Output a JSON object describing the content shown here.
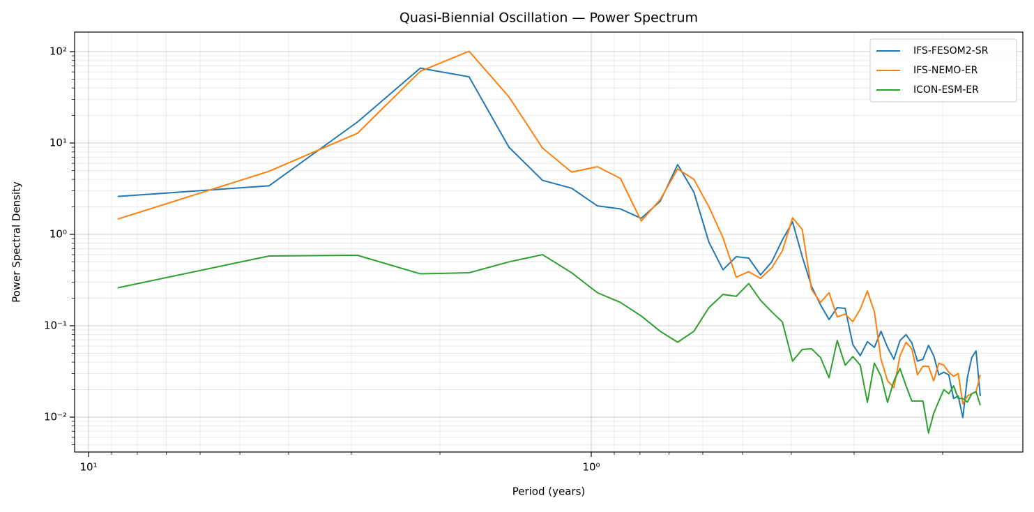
{
  "chart_data": {
    "type": "line",
    "title": "Quasi-Biennial Oscillation — Power Spectrum",
    "x_label": "Period (years)",
    "y_label": "Power Spectral Density",
    "xscale": "log",
    "yscale": "log",
    "grid": true,
    "legend": "upper right",
    "xlim": [
      10.66,
      0.1385
    ],
    "ylim": [
      0.00415,
      163.7
    ],
    "xticks": [
      {
        "value": 10,
        "label": "10¹"
      },
      {
        "value": 1,
        "label": "10⁰"
      }
    ],
    "xticks_minor": [
      9,
      8,
      7,
      6,
      5,
      4,
      3,
      2,
      0.9,
      0.8,
      0.7,
      0.6,
      0.5,
      0.4,
      0.3,
      0.2
    ],
    "yticks": [
      {
        "value": 0.01,
        "label": "10⁻²"
      },
      {
        "value": 0.1,
        "label": "10⁻¹"
      },
      {
        "value": 1,
        "label": "10⁰"
      },
      {
        "value": 10,
        "label": "10¹"
      },
      {
        "value": 100,
        "label": "10²"
      }
    ],
    "yticks_minor": [
      0.005,
      0.006,
      0.007,
      0.008,
      0.009,
      0.02,
      0.03,
      0.04,
      0.05,
      0.06,
      0.07,
      0.08,
      0.09,
      0.2,
      0.3,
      0.4,
      0.5,
      0.6,
      0.7,
      0.8,
      0.9,
      2,
      3,
      4,
      5,
      6,
      7,
      8,
      9,
      20,
      30,
      40,
      50,
      60,
      70,
      80,
      90
    ],
    "x": [
      8.75,
      4.375,
      2.917,
      2.188,
      1.75,
      1.458,
      1.25,
      1.094,
      0.9722,
      0.875,
      0.7955,
      0.7292,
      0.6731,
      0.625,
      0.5833,
      0.5469,
      0.5147,
      0.4861,
      0.4605,
      0.4375,
      0.4167,
      0.3977,
      0.3804,
      0.3646,
      0.35,
      0.3365,
      0.3241,
      0.3125,
      0.3017,
      0.2917,
      0.2823,
      0.2734,
      0.2652,
      0.2574,
      0.25,
      0.2431,
      0.2365,
      0.2303,
      0.2244,
      0.2188,
      0.2134,
      0.2083,
      0.2035,
      0.1989,
      0.1944,
      0.1902,
      0.1862,
      0.1823,
      0.1786,
      0.175,
      0.1716,
      0.1683
    ],
    "series": [
      {
        "name": "IFS-FESOM2-SR",
        "color": "#1f77b4",
        "values": [
          2.6,
          3.4,
          17,
          66,
          53,
          9,
          3.9,
          3.2,
          2.05,
          1.9,
          1.5,
          2.3,
          5.8,
          2.9,
          0.82,
          0.41,
          0.57,
          0.55,
          0.36,
          0.5,
          0.87,
          1.37,
          0.57,
          0.27,
          0.17,
          0.117,
          0.158,
          0.155,
          0.062,
          0.047,
          0.067,
          0.058,
          0.087,
          0.058,
          0.043,
          0.069,
          0.08,
          0.065,
          0.041,
          0.043,
          0.061,
          0.047,
          0.029,
          0.031,
          0.029,
          0.016,
          0.017,
          0.0099,
          0.027,
          0.045,
          0.053,
          0.017
        ]
      },
      {
        "name": "IFS-NEMO-ER",
        "color": "#ff7f0e",
        "values": [
          1.47,
          4.9,
          12.8,
          61,
          101,
          32,
          8.8,
          4.8,
          5.5,
          4.1,
          1.4,
          2.4,
          5.2,
          4.0,
          2.0,
          0.92,
          0.34,
          0.39,
          0.33,
          0.43,
          0.66,
          1.52,
          1.13,
          0.25,
          0.18,
          0.23,
          0.125,
          0.134,
          0.111,
          0.152,
          0.24,
          0.142,
          0.043,
          0.025,
          0.021,
          0.047,
          0.066,
          0.056,
          0.029,
          0.036,
          0.036,
          0.025,
          0.039,
          0.037,
          0.031,
          0.028,
          0.03,
          0.014,
          0.017,
          0.018,
          0.019,
          0.029
        ]
      },
      {
        "name": "ICON-ESM-ER",
        "color": "#2ca02c",
        "values": [
          0.26,
          0.58,
          0.59,
          0.37,
          0.38,
          0.5,
          0.6,
          0.38,
          0.23,
          0.18,
          0.128,
          0.087,
          0.066,
          0.087,
          0.158,
          0.22,
          0.21,
          0.29,
          0.19,
          0.142,
          0.11,
          0.041,
          0.055,
          0.056,
          0.045,
          0.027,
          0.069,
          0.037,
          0.046,
          0.037,
          0.0145,
          0.039,
          0.028,
          0.0145,
          0.025,
          0.034,
          0.022,
          0.015,
          0.015,
          0.015,
          0.0067,
          0.011,
          0.015,
          0.02,
          0.018,
          0.022,
          0.016,
          0.016,
          0.0146,
          0.018,
          0.019,
          0.0135
        ]
      }
    ]
  }
}
